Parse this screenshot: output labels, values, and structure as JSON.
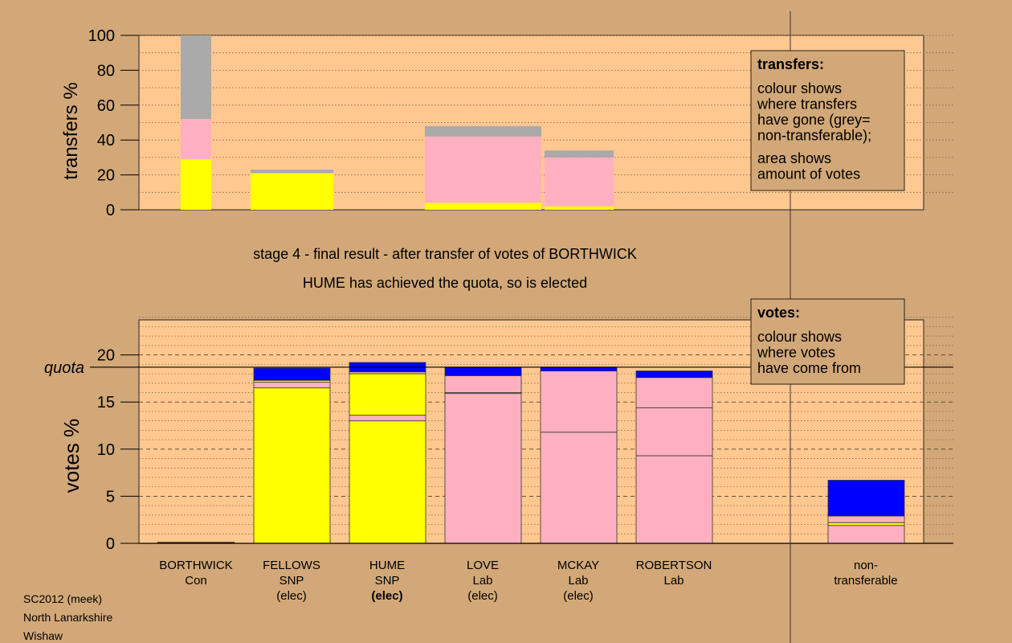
{
  "colors": {
    "background": "#d2a878",
    "plot_bg": "#ffc890",
    "yellow": "#ffff00",
    "pink": "#ffb0c0",
    "blue": "#0000ff",
    "grey": "#aaaaaa"
  },
  "titles": {
    "line1": "stage 4 - final result - after transfer of votes of BORTHWICK",
    "line2": "HUME has achieved the quota, so is elected"
  },
  "footer": [
    "SC2012 (meek)",
    "North Lanarkshire",
    "Wishaw"
  ],
  "chart_data": [
    {
      "type": "bar",
      "name": "transfers",
      "ylabel": "transfers %",
      "ylim": [
        0,
        100
      ],
      "yticks": [
        0,
        20,
        40,
        60,
        80,
        100
      ],
      "categories": [
        "BORTHWICK",
        "FELLOWS",
        "HUME",
        "LOVE",
        "MCKAY",
        "ROBERTSON"
      ],
      "bars": [
        {
          "category": "BORTHWICK",
          "segments": [
            {
              "color": "yellow",
              "value": 29
            },
            {
              "color": "pink",
              "value": 23
            },
            {
              "color": "grey",
              "value": 48
            }
          ]
        },
        {
          "category": "FELLOWS",
          "segments": [
            {
              "color": "yellow",
              "value": 21
            },
            {
              "color": "grey",
              "value": 2
            }
          ]
        },
        {
          "category": "LOVE",
          "segments": [
            {
              "color": "yellow",
              "value": 4
            },
            {
              "color": "pink",
              "value": 38
            },
            {
              "color": "grey",
              "value": 6
            }
          ]
        },
        {
          "category": "MCKAY",
          "segments": [
            {
              "color": "yellow",
              "value": 2
            },
            {
              "color": "pink",
              "value": 28
            },
            {
              "color": "grey",
              "value": 4
            }
          ]
        }
      ],
      "legend": {
        "title": "transfers:",
        "text1": "colour shows\nwhere transfers\nhave gone (grey=\nnon-transferable);",
        "text2": "area shows\namount of votes"
      }
    },
    {
      "type": "bar",
      "name": "votes",
      "ylabel": "votes %",
      "ylim": [
        0,
        24
      ],
      "yticks": [
        0,
        5,
        10,
        15,
        20
      ],
      "quota": 18.7,
      "quota_label": "quota",
      "candidates": [
        {
          "name": "BORTHWICK",
          "party": "Con",
          "status": "",
          "segments": []
        },
        {
          "name": "FELLOWS",
          "party": "SNP",
          "status": "(elec)",
          "segments": [
            {
              "color": "yellow",
              "value": 16.5
            },
            {
              "color": "pink",
              "value": 0.6
            },
            {
              "color": "yellow",
              "value": 0.2
            },
            {
              "color": "blue",
              "value": 1.3
            }
          ]
        },
        {
          "name": "HUME",
          "party": "SNP",
          "status": "(elec)",
          "segments": [
            {
              "color": "yellow",
              "value": 13.0
            },
            {
              "color": "pink",
              "value": 0.6
            },
            {
              "color": "yellow",
              "value": 4.4
            },
            {
              "color": "pink",
              "value": 0.2
            },
            {
              "color": "blue",
              "value": 1.0
            }
          ]
        },
        {
          "name": "LOVE",
          "party": "Lab",
          "status": "(elec)",
          "segments": [
            {
              "color": "pink",
              "value": 15.9
            },
            {
              "color": "yellow",
              "value": 0.1
            },
            {
              "color": "pink",
              "value": 1.8
            },
            {
              "color": "blue",
              "value": 0.9
            }
          ]
        },
        {
          "name": "MCKAY",
          "party": "Lab",
          "status": "(elec)",
          "segments": [
            {
              "color": "pink",
              "value": 11.8
            },
            {
              "color": "pink",
              "value": 6.5
            },
            {
              "color": "blue",
              "value": 0.4
            }
          ]
        },
        {
          "name": "ROBERTSON",
          "party": "Lab",
          "status": "",
          "segments": [
            {
              "color": "pink",
              "value": 9.3
            },
            {
              "color": "pink",
              "value": 5.1
            },
            {
              "color": "pink",
              "value": 3.2
            },
            {
              "color": "blue",
              "value": 0.7
            }
          ]
        },
        {
          "name": "non-",
          "party": "transferable",
          "status": "",
          "segments": [
            {
              "color": "pink",
              "value": 1.9
            },
            {
              "color": "yellow",
              "value": 0.3
            },
            {
              "color": "pink",
              "value": 0.7
            },
            {
              "color": "blue",
              "value": 3.8
            }
          ]
        }
      ],
      "legend": {
        "title": "votes:",
        "text1": "colour shows\nwhere votes\nhave come from"
      }
    }
  ]
}
